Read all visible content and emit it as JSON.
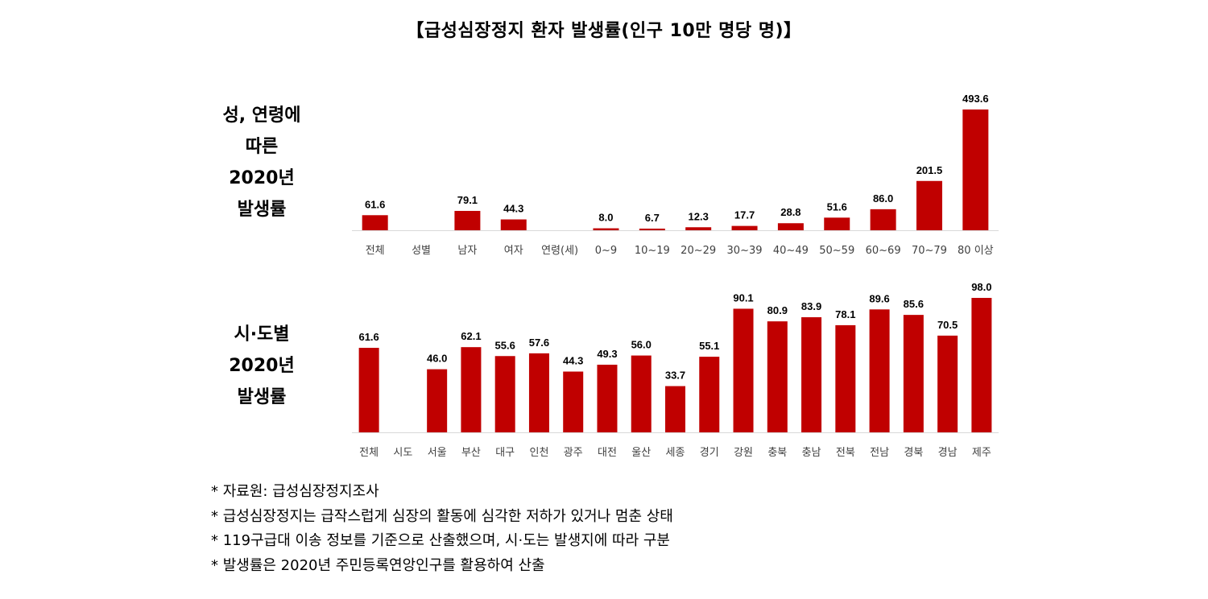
{
  "title": "【급성심장정지 환자 발생률(인구 10만 명당 명)】",
  "panel1_label": [
    "성, 연령에",
    "따른",
    "2020년",
    "발생률"
  ],
  "panel2_label": [
    "시·도별",
    "2020년",
    "발생률"
  ],
  "colors": {
    "bar": "#c00000",
    "axis": "#d9d9d9",
    "text": "#000000",
    "tick": "#404040"
  },
  "chart_data": [
    {
      "type": "bar",
      "categories": [
        "전체",
        "성별",
        "남자",
        "여자",
        "연령(세)",
        "0~9",
        "10~19",
        "20~29",
        "30~39",
        "40~49",
        "50~59",
        "60~69",
        "70~79",
        "80 이상"
      ],
      "values": [
        61.6,
        null,
        79.1,
        44.3,
        null,
        8.0,
        6.7,
        12.3,
        17.7,
        28.8,
        51.6,
        86.0,
        201.5,
        493.6
      ],
      "data_labels": [
        "61.6",
        "",
        "79.1",
        "44.3",
        "",
        "8.0",
        "6.7",
        "12.3",
        "17.7",
        "28.8",
        "51.6",
        "86.0",
        "201.5",
        "493.6"
      ],
      "ylim": [
        0,
        493.6
      ]
    },
    {
      "type": "bar",
      "categories": [
        "전체",
        "시도",
        "서울",
        "부산",
        "대구",
        "인천",
        "광주",
        "대전",
        "울산",
        "세종",
        "경기",
        "강원",
        "충북",
        "충남",
        "전북",
        "전남",
        "경북",
        "경남",
        "제주"
      ],
      "values": [
        61.6,
        null,
        46.0,
        62.1,
        55.6,
        57.6,
        44.3,
        49.3,
        56.0,
        33.7,
        55.1,
        90.1,
        80.9,
        83.9,
        78.1,
        89.6,
        85.6,
        70.5,
        98.0
      ],
      "data_labels": [
        "61.6",
        "",
        "46.0",
        "62.1",
        "55.6",
        "57.6",
        "44.3",
        "49.3",
        "56.0",
        "33.7",
        "55.1",
        "90.1",
        "80.9",
        "83.9",
        "78.1",
        "89.6",
        "85.6",
        "70.5",
        "98.0"
      ],
      "ylim": [
        0,
        98.0
      ]
    }
  ],
  "notes": [
    "* 자료원: 급성심장정지조사",
    "* 급성심장정지는 급작스럽게 심장의 활동에 심각한 저하가 있거나 멈춘 상태",
    "* 119구급대 이송 정보를 기준으로 산출했으며, 시·도는 발생지에 따라 구분",
    "* 발생률은 2020년 주민등록연앙인구를 활용하여 산출"
  ]
}
